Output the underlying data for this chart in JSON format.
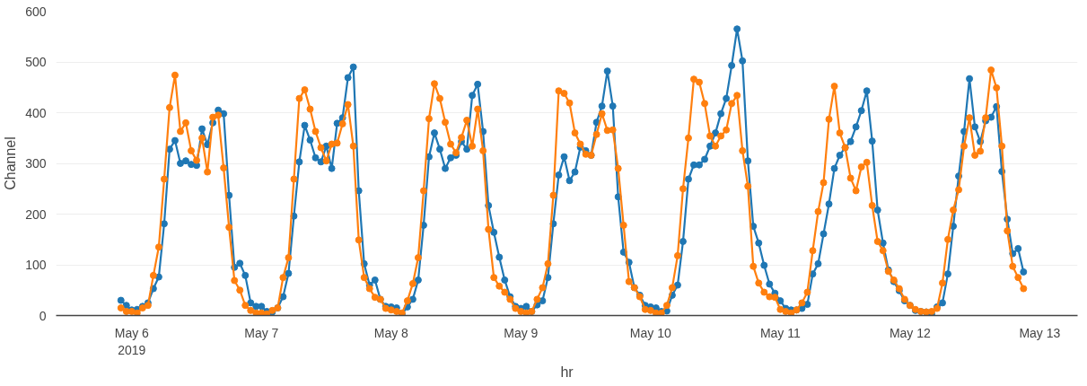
{
  "chart_data": {
    "type": "line",
    "xlabel": "hr",
    "ylabel": "Channel",
    "x": [
      "2019-05-05T22:00",
      "2019-05-05T23:00",
      "2019-05-06T00:00",
      "2019-05-06T01:00",
      "2019-05-06T02:00",
      "2019-05-06T03:00",
      "2019-05-06T04:00",
      "2019-05-06T05:00",
      "2019-05-06T06:00",
      "2019-05-06T07:00",
      "2019-05-06T08:00",
      "2019-05-06T09:00",
      "2019-05-06T10:00",
      "2019-05-06T11:00",
      "2019-05-06T12:00",
      "2019-05-06T13:00",
      "2019-05-06T14:00",
      "2019-05-06T15:00",
      "2019-05-06T16:00",
      "2019-05-06T17:00",
      "2019-05-06T18:00",
      "2019-05-06T19:00",
      "2019-05-06T20:00",
      "2019-05-06T21:00",
      "2019-05-06T22:00",
      "2019-05-06T23:00",
      "2019-05-07T00:00",
      "2019-05-07T01:00",
      "2019-05-07T02:00",
      "2019-05-07T03:00",
      "2019-05-07T04:00",
      "2019-05-07T05:00",
      "2019-05-07T06:00",
      "2019-05-07T07:00",
      "2019-05-07T08:00",
      "2019-05-07T09:00",
      "2019-05-07T10:00",
      "2019-05-07T11:00",
      "2019-05-07T12:00",
      "2019-05-07T13:00",
      "2019-05-07T14:00",
      "2019-05-07T15:00",
      "2019-05-07T16:00",
      "2019-05-07T17:00",
      "2019-05-07T18:00",
      "2019-05-07T19:00",
      "2019-05-07T20:00",
      "2019-05-07T21:00",
      "2019-05-07T22:00",
      "2019-05-07T23:00",
      "2019-05-08T00:00",
      "2019-05-08T01:00",
      "2019-05-08T02:00",
      "2019-05-08T03:00",
      "2019-05-08T04:00",
      "2019-05-08T05:00",
      "2019-05-08T06:00",
      "2019-05-08T07:00",
      "2019-05-08T08:00",
      "2019-05-08T09:00",
      "2019-05-08T10:00",
      "2019-05-08T11:00",
      "2019-05-08T12:00",
      "2019-05-08T13:00",
      "2019-05-08T14:00",
      "2019-05-08T15:00",
      "2019-05-08T16:00",
      "2019-05-08T17:00",
      "2019-05-08T18:00",
      "2019-05-08T19:00",
      "2019-05-08T20:00",
      "2019-05-08T21:00",
      "2019-05-08T22:00",
      "2019-05-08T23:00",
      "2019-05-09T00:00",
      "2019-05-09T01:00",
      "2019-05-09T02:00",
      "2019-05-09T03:00",
      "2019-05-09T04:00",
      "2019-05-09T05:00",
      "2019-05-09T06:00",
      "2019-05-09T07:00",
      "2019-05-09T08:00",
      "2019-05-09T09:00",
      "2019-05-09T10:00",
      "2019-05-09T11:00",
      "2019-05-09T12:00",
      "2019-05-09T13:00",
      "2019-05-09T14:00",
      "2019-05-09T15:00",
      "2019-05-09T16:00",
      "2019-05-09T17:00",
      "2019-05-09T18:00",
      "2019-05-09T19:00",
      "2019-05-09T20:00",
      "2019-05-09T21:00",
      "2019-05-09T22:00",
      "2019-05-09T23:00",
      "2019-05-10T00:00",
      "2019-05-10T01:00",
      "2019-05-10T02:00",
      "2019-05-10T03:00",
      "2019-05-10T04:00",
      "2019-05-10T05:00",
      "2019-05-10T06:00",
      "2019-05-10T07:00",
      "2019-05-10T08:00",
      "2019-05-10T09:00",
      "2019-05-10T10:00",
      "2019-05-10T11:00",
      "2019-05-10T12:00",
      "2019-05-10T13:00",
      "2019-05-10T14:00",
      "2019-05-10T15:00",
      "2019-05-10T16:00",
      "2019-05-10T17:00",
      "2019-05-10T18:00",
      "2019-05-10T19:00",
      "2019-05-10T20:00",
      "2019-05-10T21:00",
      "2019-05-10T22:00",
      "2019-05-10T23:00",
      "2019-05-11T00:00",
      "2019-05-11T01:00",
      "2019-05-11T02:00",
      "2019-05-11T03:00",
      "2019-05-11T04:00",
      "2019-05-11T05:00",
      "2019-05-11T06:00",
      "2019-05-11T07:00",
      "2019-05-11T08:00",
      "2019-05-11T09:00",
      "2019-05-11T10:00",
      "2019-05-11T11:00",
      "2019-05-11T12:00",
      "2019-05-11T13:00",
      "2019-05-11T14:00",
      "2019-05-11T15:00",
      "2019-05-11T16:00",
      "2019-05-11T17:00",
      "2019-05-11T18:00",
      "2019-05-11T19:00",
      "2019-05-11T20:00",
      "2019-05-11T21:00",
      "2019-05-11T22:00",
      "2019-05-11T23:00",
      "2019-05-12T00:00",
      "2019-05-12T01:00",
      "2019-05-12T02:00",
      "2019-05-12T03:00",
      "2019-05-12T04:00",
      "2019-05-12T05:00",
      "2019-05-12T06:00",
      "2019-05-12T07:00",
      "2019-05-12T08:00",
      "2019-05-12T09:00",
      "2019-05-12T10:00",
      "2019-05-12T11:00",
      "2019-05-12T12:00",
      "2019-05-12T13:00",
      "2019-05-12T14:00",
      "2019-05-12T15:00",
      "2019-05-12T16:00",
      "2019-05-12T17:00",
      "2019-05-12T18:00",
      "2019-05-12T19:00",
      "2019-05-12T20:00",
      "2019-05-12T21:00"
    ],
    "series": [
      {
        "color": "#1f77b4",
        "values": [
          30,
          20,
          11,
          12,
          18,
          25,
          53,
          76,
          181,
          328,
          345,
          300,
          305,
          298,
          296,
          368,
          337,
          380,
          405,
          398,
          237,
          95,
          103,
          79,
          25,
          18,
          18,
          8,
          7,
          15,
          37,
          83,
          196,
          303,
          375,
          346,
          311,
          303,
          334,
          290,
          379,
          390,
          469,
          490,
          246,
          102,
          60,
          70,
          32,
          18,
          17,
          15,
          3,
          17,
          32,
          70,
          178,
          313,
          360,
          328,
          290,
          311,
          316,
          343,
          328,
          434,
          456,
          363,
          217,
          164,
          115,
          70,
          37,
          18,
          14,
          18,
          8,
          21,
          29,
          75,
          181,
          277,
          313,
          266,
          283,
          332,
          325,
          316,
          381,
          413,
          482,
          413,
          234,
          125,
          105,
          55,
          40,
          20,
          17,
          15,
          8,
          9,
          40,
          60,
          146,
          269,
          297,
          297,
          308,
          334,
          360,
          398,
          428,
          493,
          565,
          502,
          305,
          176,
          143,
          99,
          62,
          44,
          29,
          14,
          11,
          11,
          14,
          22,
          82,
          102,
          161,
          220,
          290,
          316,
          331,
          343,
          372,
          404,
          443,
          344,
          208,
          143,
          90,
          67,
          49,
          29,
          20,
          10,
          8,
          7,
          3,
          17,
          25,
          82,
          176,
          275,
          363,
          467,
          372,
          343,
          384,
          391,
          412,
          284,
          190,
          122,
          132,
          86
        ]
      },
      {
        "color": "#ff7f0e",
        "values": [
          15,
          8,
          8,
          5,
          15,
          20,
          79,
          135,
          269,
          410,
          474,
          363,
          380,
          325,
          306,
          350,
          283,
          391,
          395,
          291,
          174,
          69,
          50,
          20,
          10,
          5,
          5,
          3,
          10,
          15,
          75,
          114,
          269,
          428,
          445,
          407,
          363,
          331,
          305,
          338,
          340,
          378,
          416,
          334,
          149,
          75,
          53,
          36,
          32,
          14,
          11,
          8,
          5,
          29,
          63,
          114,
          246,
          388,
          457,
          428,
          381,
          338,
          321,
          351,
          385,
          334,
          407,
          325,
          170,
          75,
          58,
          46,
          32,
          14,
          8,
          5,
          8,
          32,
          55,
          102,
          237,
          443,
          438,
          419,
          360,
          338,
          318,
          316,
          357,
          398,
          365,
          366,
          290,
          178,
          67,
          55,
          37,
          12,
          10,
          5,
          5,
          20,
          55,
          118,
          250,
          350,
          466,
          460,
          418,
          354,
          334,
          354,
          366,
          418,
          434,
          325,
          255,
          97,
          64,
          46,
          37,
          36,
          12,
          8,
          5,
          11,
          25,
          46,
          128,
          205,
          262,
          387,
          452,
          360,
          331,
          271,
          246,
          293,
          302,
          217,
          146,
          128,
          87,
          70,
          53,
          32,
          20,
          12,
          8,
          7,
          8,
          14,
          64,
          150,
          208,
          248,
          334,
          390,
          316,
          324,
          390,
          484,
          449,
          334,
          167,
          97,
          75,
          53
        ]
      }
    ],
    "xlim": [
      "2019-05-05T10:00",
      "2019-05-13T07:00"
    ],
    "xticks": [
      {
        "value": "2019-05-06",
        "label": "May 6\n2019"
      },
      {
        "value": "2019-05-07",
        "label": "May 7"
      },
      {
        "value": "2019-05-08",
        "label": "May 8"
      },
      {
        "value": "2019-05-09",
        "label": "May 9"
      },
      {
        "value": "2019-05-10",
        "label": "May 10"
      },
      {
        "value": "2019-05-11",
        "label": "May 11"
      },
      {
        "value": "2019-05-12",
        "label": "May 12"
      },
      {
        "value": "2019-05-13",
        "label": "May 13"
      }
    ],
    "ylim": [
      0,
      600
    ],
    "yticks": [
      0,
      100,
      200,
      300,
      400,
      500,
      600
    ],
    "grid": "y",
    "marker": "circle",
    "line_style": "solid"
  }
}
